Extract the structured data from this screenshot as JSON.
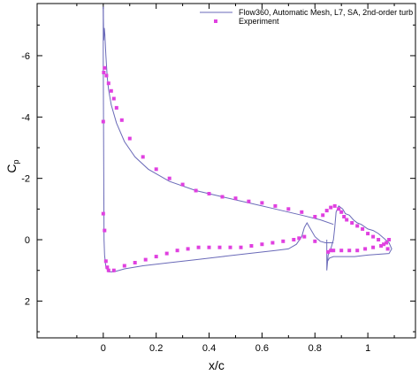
{
  "chart_data": {
    "type": "line",
    "xlabel": "x/c",
    "ylabel": "C",
    "ylabel_sub": "p",
    "xlim": [
      -0.25,
      1.18
    ],
    "ylim": [
      -7.7,
      3.2
    ],
    "y_reversed": true,
    "x_ticks": [
      0,
      0.2,
      0.4,
      0.6,
      0.8,
      1
    ],
    "x_tick_labels": [
      "0",
      "0.2",
      "0.4",
      "0.6",
      "0.8",
      "1"
    ],
    "y_ticks": [
      -6,
      -4,
      -2,
      0,
      2
    ],
    "y_tick_labels": [
      "-6",
      "-4",
      "-2",
      "0",
      "2"
    ],
    "grid": false,
    "legend_position": "top-right",
    "colors": {
      "line": "#6a6ab8",
      "marker": "#e040e0"
    },
    "series": [
      {
        "name": "Flow360, Automatic Mesh, L7, SA, 2nd-order turb",
        "kind": "line",
        "segments": [
          [
            [
              0.0,
              -7.6
            ],
            [
              0.002,
              -6.5
            ],
            [
              0.004,
              -6.9
            ],
            [
              0.006,
              -6.7
            ],
            [
              0.01,
              -6.0
            ],
            [
              0.015,
              -5.3
            ],
            [
              0.02,
              -4.9
            ],
            [
              0.03,
              -4.4
            ],
            [
              0.05,
              -3.8
            ],
            [
              0.08,
              -3.2
            ],
            [
              0.12,
              -2.7
            ],
            [
              0.17,
              -2.3
            ],
            [
              0.25,
              -1.9
            ],
            [
              0.35,
              -1.6
            ],
            [
              0.45,
              -1.4
            ],
            [
              0.55,
              -1.2
            ],
            [
              0.65,
              -1.0
            ],
            [
              0.75,
              -0.8
            ],
            [
              0.82,
              -0.65
            ],
            [
              0.87,
              -0.5
            ]
          ],
          [
            [
              0.0,
              -7.6
            ],
            [
              0.0,
              -6.0
            ],
            [
              0.001,
              -4.0
            ],
            [
              0.002,
              -2.0
            ],
            [
              0.003,
              0.0
            ],
            [
              0.005,
              0.5
            ],
            [
              0.01,
              0.9
            ],
            [
              0.02,
              1.05
            ],
            [
              0.04,
              1.05
            ],
            [
              0.08,
              0.95
            ],
            [
              0.15,
              0.85
            ],
            [
              0.25,
              0.75
            ],
            [
              0.35,
              0.65
            ],
            [
              0.45,
              0.55
            ],
            [
              0.55,
              0.45
            ],
            [
              0.65,
              0.35
            ],
            [
              0.7,
              0.3
            ],
            [
              0.73,
              0.15
            ],
            [
              0.75,
              -0.1
            ],
            [
              0.76,
              -0.4
            ],
            [
              0.77,
              -0.55
            ],
            [
              0.78,
              -0.4
            ],
            [
              0.8,
              -0.1
            ],
            [
              0.82,
              0.05
            ],
            [
              0.84,
              0.1
            ],
            [
              0.87,
              0.1
            ]
          ],
          [
            [
              0.845,
              0.0
            ],
            [
              0.845,
              1.0
            ],
            [
              0.85,
              0.5
            ],
            [
              0.86,
              0.3
            ],
            [
              0.87,
              0.0
            ],
            [
              0.875,
              -0.4
            ],
            [
              0.88,
              -0.9
            ],
            [
              0.89,
              -1.1
            ],
            [
              0.905,
              -1.0
            ],
            [
              0.915,
              -0.85
            ],
            [
              0.93,
              -0.8
            ],
            [
              0.945,
              -0.65
            ],
            [
              0.96,
              -0.55
            ],
            [
              0.975,
              -0.5
            ],
            [
              1.0,
              -0.35
            ],
            [
              1.02,
              -0.3
            ],
            [
              1.04,
              -0.2
            ],
            [
              1.06,
              -0.05
            ],
            [
              1.08,
              0.1
            ],
            [
              1.09,
              0.3
            ],
            [
              1.08,
              0.45
            ],
            [
              1.0,
              0.5
            ],
            [
              0.95,
              0.55
            ],
            [
              0.9,
              0.55
            ],
            [
              0.87,
              0.55
            ],
            [
              0.855,
              0.6
            ],
            [
              0.848,
              0.7
            ],
            [
              0.845,
              0.9
            ]
          ]
        ]
      },
      {
        "name": "Experiment",
        "kind": "markers",
        "points": [
          [
            0.0,
            -3.85
          ],
          [
            0.002,
            -5.45
          ],
          [
            0.005,
            -5.6
          ],
          [
            0.012,
            -5.35
          ],
          [
            0.02,
            -5.1
          ],
          [
            0.03,
            -4.85
          ],
          [
            0.04,
            -4.6
          ],
          [
            0.05,
            -4.3
          ],
          [
            0.07,
            -3.9
          ],
          [
            0.1,
            -3.3
          ],
          [
            0.15,
            -2.7
          ],
          [
            0.2,
            -2.3
          ],
          [
            0.25,
            -2.0
          ],
          [
            0.3,
            -1.8
          ],
          [
            0.35,
            -1.6
          ],
          [
            0.4,
            -1.5
          ],
          [
            0.45,
            -1.4
          ],
          [
            0.5,
            -1.35
          ],
          [
            0.55,
            -1.25
          ],
          [
            0.6,
            -1.2
          ],
          [
            0.65,
            -1.1
          ],
          [
            0.7,
            -1.0
          ],
          [
            0.75,
            -0.9
          ],
          [
            0.8,
            -0.75
          ],
          [
            0.83,
            -0.8
          ],
          [
            0.845,
            -0.95
          ],
          [
            0.86,
            -1.05
          ],
          [
            0.875,
            -1.1
          ],
          [
            0.89,
            -1.0
          ],
          [
            0.9,
            -0.9
          ],
          [
            0.91,
            -0.75
          ],
          [
            0.92,
            -0.65
          ],
          [
            0.94,
            -0.55
          ],
          [
            0.96,
            -0.45
          ],
          [
            0.98,
            -0.35
          ],
          [
            1.0,
            -0.2
          ],
          [
            1.02,
            -0.1
          ],
          [
            1.04,
            0.0
          ],
          [
            1.06,
            0.15
          ],
          [
            1.075,
            0.3
          ],
          [
            0.0,
            -0.85
          ],
          [
            0.005,
            -0.3
          ],
          [
            0.01,
            0.7
          ],
          [
            0.015,
            0.9
          ],
          [
            0.02,
            1.0
          ],
          [
            0.04,
            1.0
          ],
          [
            0.08,
            0.85
          ],
          [
            0.12,
            0.75
          ],
          [
            0.16,
            0.65
          ],
          [
            0.2,
            0.55
          ],
          [
            0.24,
            0.45
          ],
          [
            0.28,
            0.35
          ],
          [
            0.32,
            0.3
          ],
          [
            0.36,
            0.25
          ],
          [
            0.4,
            0.25
          ],
          [
            0.44,
            0.25
          ],
          [
            0.48,
            0.25
          ],
          [
            0.52,
            0.25
          ],
          [
            0.56,
            0.2
          ],
          [
            0.6,
            0.15
          ],
          [
            0.64,
            0.1
          ],
          [
            0.68,
            0.05
          ],
          [
            0.72,
            0.0
          ],
          [
            0.74,
            -0.05
          ],
          [
            0.76,
            -0.1
          ],
          [
            0.8,
            0.05
          ],
          [
            0.85,
            0.4
          ],
          [
            0.86,
            0.35
          ],
          [
            0.87,
            0.35
          ],
          [
            0.9,
            0.35
          ],
          [
            0.93,
            0.35
          ],
          [
            0.96,
            0.35
          ],
          [
            0.99,
            0.3
          ],
          [
            1.02,
            0.25
          ],
          [
            1.05,
            0.2
          ],
          [
            1.07,
            0.1
          ],
          [
            1.08,
            0.0
          ]
        ]
      }
    ]
  }
}
